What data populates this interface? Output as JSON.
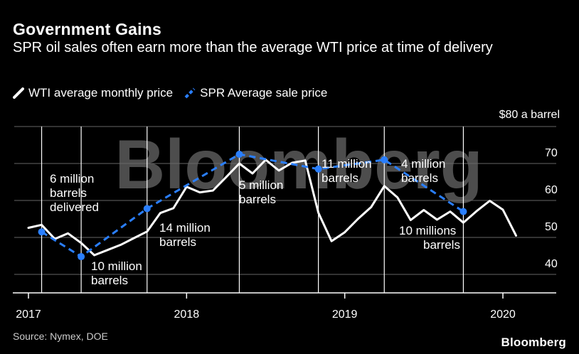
{
  "title": "Government Gains",
  "subtitle": "SPR oil sales often earn more than the average WTI price at time of delivery",
  "legend": {
    "wti_label": "WTI average monthly price",
    "spr_label": "SPR Average sale price"
  },
  "watermark": "Bloomberg",
  "source": "Source: Nymex, DOE",
  "brand": "Bloomberg",
  "colors": {
    "background": "#000000",
    "wti": "#ffffff",
    "spr": "#2a7fff",
    "grid": "#666666"
  },
  "chart_data": {
    "type": "line",
    "x_axis": {
      "type": "date",
      "range": [
        "2017-01",
        "2020-04"
      ],
      "ticks": [
        {
          "label": "2017",
          "date": "2017-01"
        },
        {
          "label": "2018",
          "date": "2018-01"
        },
        {
          "label": "2019",
          "date": "2019-01"
        },
        {
          "label": "2020",
          "date": "2020-01"
        }
      ]
    },
    "y_axis": {
      "range": [
        35,
        80
      ],
      "position": "right",
      "ticks": [
        {
          "value": 80,
          "label": "$80 a barrel"
        },
        {
          "value": 70,
          "label": "70"
        },
        {
          "value": 60,
          "label": "60"
        },
        {
          "value": 50,
          "label": "50"
        },
        {
          "value": 40,
          "label": "40"
        }
      ],
      "gridlines": true
    },
    "series": [
      {
        "name": "WTI average monthly price",
        "style": "solid",
        "points": [
          [
            "2017-01",
            52.6
          ],
          [
            "2017-02",
            53.4
          ],
          [
            "2017-03",
            49.6
          ],
          [
            "2017-04",
            51.1
          ],
          [
            "2017-05",
            48.5
          ],
          [
            "2017-06",
            45.2
          ],
          [
            "2017-07",
            46.6
          ],
          [
            "2017-08",
            48.0
          ],
          [
            "2017-09",
            49.8
          ],
          [
            "2017-10",
            51.6
          ],
          [
            "2017-11",
            56.6
          ],
          [
            "2017-12",
            57.9
          ],
          [
            "2018-01",
            63.7
          ],
          [
            "2018-02",
            62.2
          ],
          [
            "2018-03",
            62.7
          ],
          [
            "2018-04",
            66.3
          ],
          [
            "2018-05",
            70.0
          ],
          [
            "2018-06",
            67.3
          ],
          [
            "2018-07",
            71.0
          ],
          [
            "2018-08",
            68.1
          ],
          [
            "2018-09",
            70.2
          ],
          [
            "2018-10",
            70.8
          ],
          [
            "2018-11",
            56.7
          ],
          [
            "2018-12",
            49.0
          ],
          [
            "2019-01",
            51.4
          ],
          [
            "2019-02",
            55.0
          ],
          [
            "2019-03",
            58.2
          ],
          [
            "2019-04",
            63.9
          ],
          [
            "2019-05",
            60.8
          ],
          [
            "2019-06",
            54.7
          ],
          [
            "2019-07",
            57.4
          ],
          [
            "2019-08",
            54.8
          ],
          [
            "2019-09",
            57.0
          ],
          [
            "2019-10",
            54.0
          ],
          [
            "2019-11",
            57.1
          ],
          [
            "2019-12",
            59.9
          ],
          [
            "2020-01",
            57.5
          ],
          [
            "2020-02",
            50.5
          ]
        ]
      },
      {
        "name": "SPR Average sale price",
        "style": "dashed",
        "points": [
          [
            "2017-02",
            51.5
          ],
          [
            "2017-05",
            44.8
          ],
          [
            "2017-10",
            57.8
          ],
          [
            "2018-05",
            72.5
          ],
          [
            "2018-11",
            68.5
          ],
          [
            "2019-04",
            71.0
          ],
          [
            "2019-10",
            57.0
          ]
        ]
      }
    ],
    "delivery_markers": [
      {
        "date": "2017-02",
        "label": [
          "6 million",
          "barrels",
          "delivered"
        ]
      },
      {
        "date": "2017-05",
        "label": [
          "10 million",
          "barrels"
        ]
      },
      {
        "date": "2017-10",
        "label": [
          "14 million",
          "barrels"
        ]
      },
      {
        "date": "2018-05",
        "label": [
          "5 million",
          "barrels"
        ]
      },
      {
        "date": "2018-11",
        "label": [
          "11 million",
          "barrels"
        ]
      },
      {
        "date": "2019-04",
        "label": [
          "4 million",
          "barrels"
        ]
      },
      {
        "date": "2019-10",
        "label": [
          "10 millions",
          "barrels"
        ]
      }
    ],
    "grid": true,
    "legend_position": "top-left"
  }
}
